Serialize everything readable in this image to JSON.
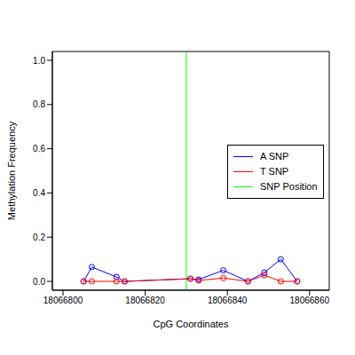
{
  "chart_data": {
    "type": "line",
    "x_label": "CpG Coordinates",
    "y_label": "Methylation Frequency",
    "xlim": [
      18066797.4,
      18066864.8
    ],
    "xticks": [
      18066800,
      18066820,
      18066840,
      18066860
    ],
    "ylim": [
      -0.04,
      1.04
    ],
    "yticks": [
      {
        "value": 0,
        "label": "0.0"
      },
      0.2,
      0.4,
      0.6,
      0.8,
      {
        "value": 1,
        "label": "1.0"
      }
    ],
    "x": [
      18066805,
      18066807,
      18066813,
      18066815,
      18066831,
      18066833,
      18066839,
      18066845,
      18066849,
      18066853,
      18066857
    ],
    "series": [
      {
        "name": "A SNP",
        "color": "#0000ff",
        "marker": "circle",
        "values": [
          0,
          0.065,
          0.02,
          0,
          0.012,
          0.008,
          0.05,
          0,
          0.04,
          0.1,
          0
        ]
      },
      {
        "name": "T SNP",
        "color": "#ff0000",
        "marker": "circle",
        "values": [
          0,
          0,
          0,
          0,
          0.012,
          0.004,
          0.015,
          0,
          0.028,
          0,
          0
        ]
      }
    ],
    "snp_position": {
      "name": "SNP Position",
      "x": 18066830,
      "color": "#00ff00"
    },
    "legend": "right"
  }
}
